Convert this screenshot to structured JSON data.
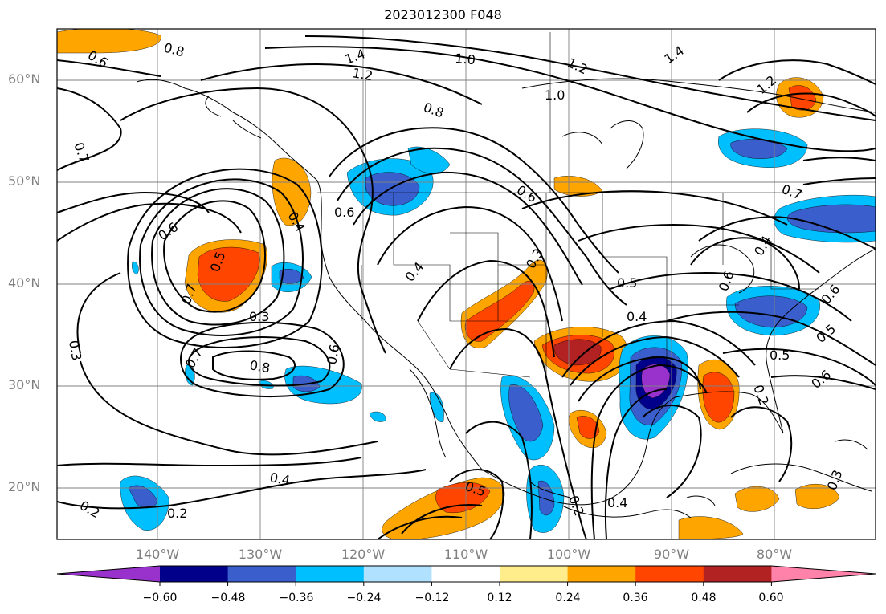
{
  "title": "2023012300 F048",
  "latitude_labels": [
    "60°N",
    "50°N",
    "40°N",
    "30°N",
    "20°N"
  ],
  "longitude_labels": [
    "140°W",
    "130°W",
    "120°W",
    "110°W",
    "100°W",
    "90°W",
    "80°W"
  ],
  "colorbar": {
    "ticks": [
      "−0.60",
      "−0.48",
      "−0.36",
      "−0.24",
      "−0.12",
      "0.12",
      "0.24",
      "0.36",
      "0.48",
      "0.60"
    ],
    "colors": [
      "#9932cc",
      "#00008b",
      "#3a5fcd",
      "#00bfff",
      "#b0e2ff",
      "#ffffff",
      "#ffec8b",
      "#ffa500",
      "#ff4500",
      "#b22222",
      "#ff82ab"
    ]
  },
  "contour_labels": [
    "0.6",
    "0.8",
    "1.4",
    "1.2",
    "1.0",
    "1.2",
    "1.4",
    "1.2",
    "0.8",
    "1.0",
    "0.7",
    "0.6",
    "0.6",
    "0.4",
    "0.5",
    "0.7",
    "0.3",
    "0.6",
    "0.4",
    "0.5",
    "0.4",
    "0.7",
    "0.8",
    "0.6",
    "0.3",
    "0.4",
    "0.2",
    "0.2",
    "0.5",
    "0.2",
    "0.4",
    "0.5",
    "0.6",
    "0.5",
    "0.6",
    "0.2",
    "0.3",
    "0.7",
    "0.6",
    "0.4",
    "0.3"
  ]
}
